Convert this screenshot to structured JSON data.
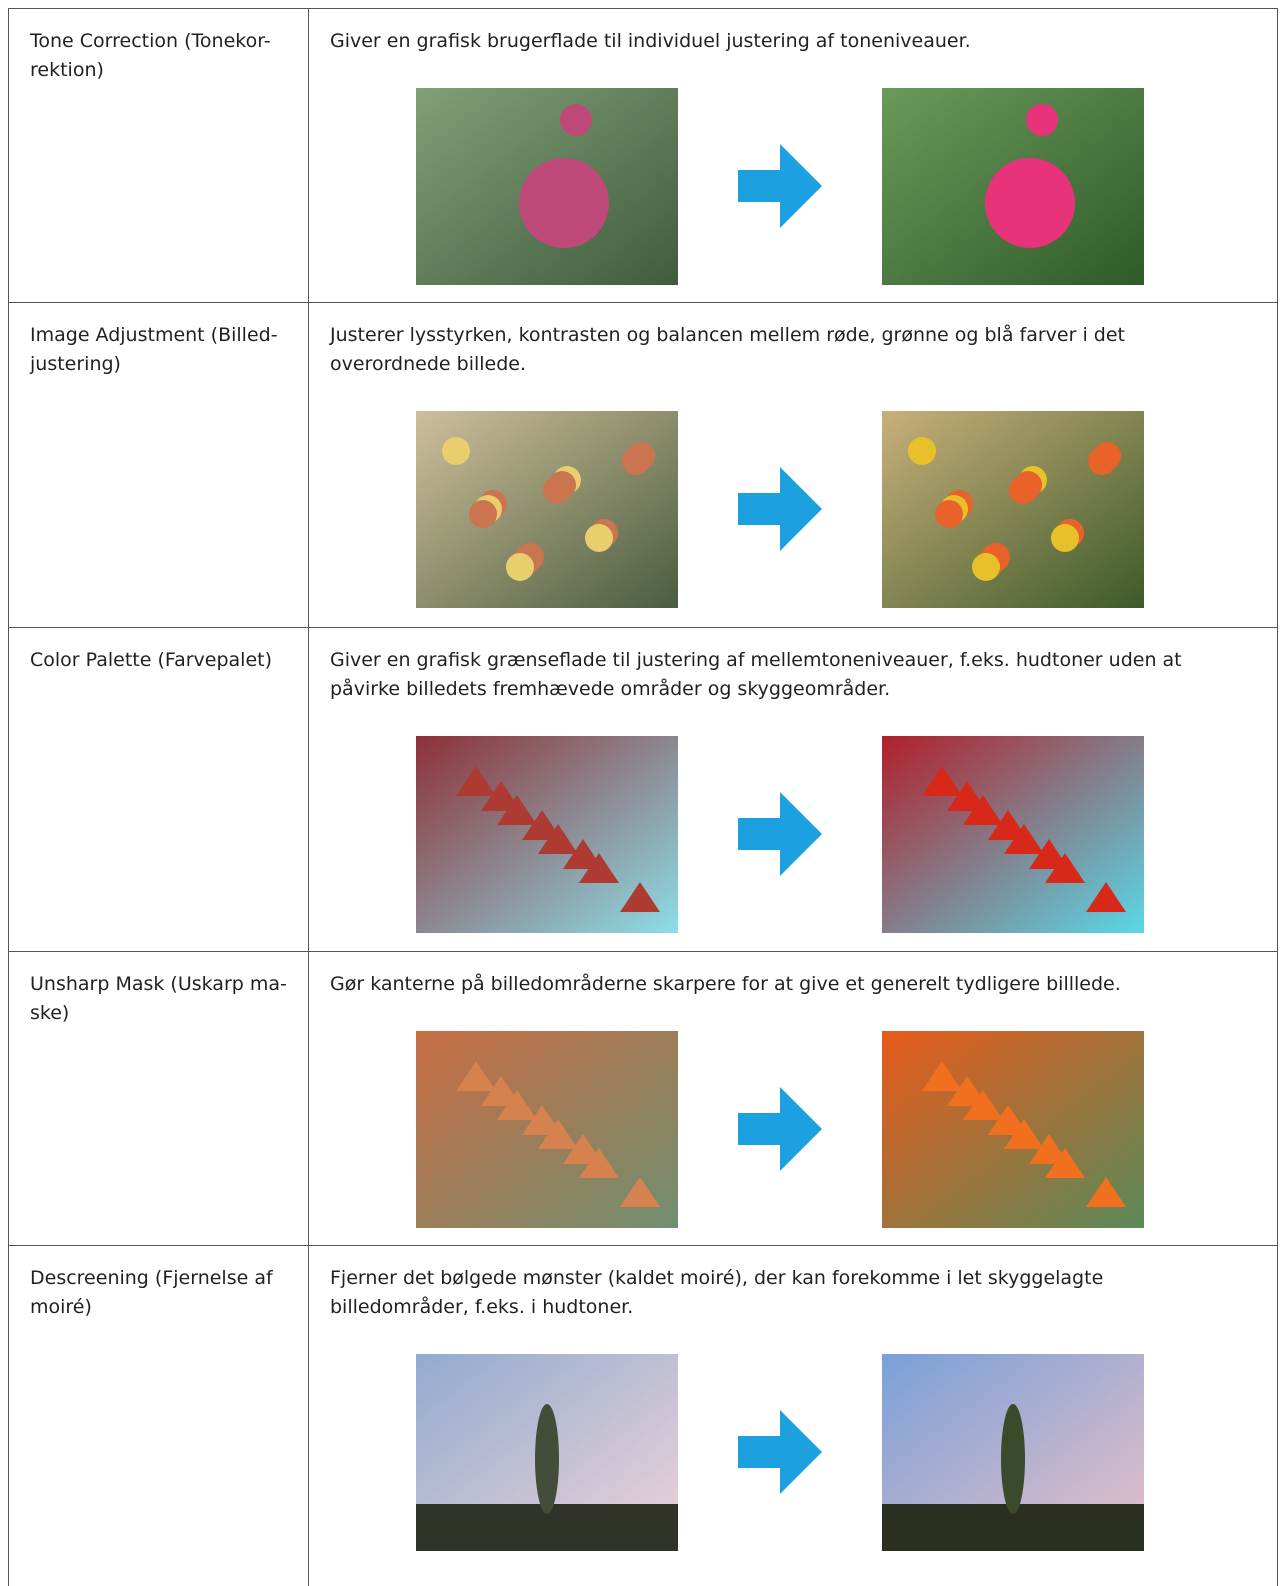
{
  "table": {
    "rows": [
      {
        "label": [
          "Tone Correction (Tonekor-",
          "rektion)"
        ],
        "description": [
          "Giver en grafisk brugerflade til individuel justering af toneniveauer."
        ]
      },
      {
        "label": [
          "Image Adjustment (Billed-",
          "justering)"
        ],
        "description": [
          "Justerer lysstyrken, kontrasten og balancen mellem røde, grønne og blå farver i det",
          "overordnede billede."
        ]
      },
      {
        "label": [
          "Color Palette (Farvepalet)"
        ],
        "description": [
          "Giver en grafisk grænseflade til justering af mellemtoneniveauer, f.eks. hudtoner uden at",
          "påvirke billedets fremhævede områder og skyggeområder."
        ]
      },
      {
        "label": [
          "Unsharp Mask (Uskarp ma-",
          "ske)"
        ],
        "description": [
          "Gør kanterne på billedområderne skarpere for at give et generelt tydligere billlede."
        ]
      },
      {
        "label": [
          "Descreening (Fjernelse af",
          "moiré)"
        ],
        "description": [
          "Fjerner det bølgede mønster (kaldet moiré), der kan forekomme i let skyggelagte",
          "billedområder, f.eks. i hudtoner."
        ]
      }
    ]
  }
}
